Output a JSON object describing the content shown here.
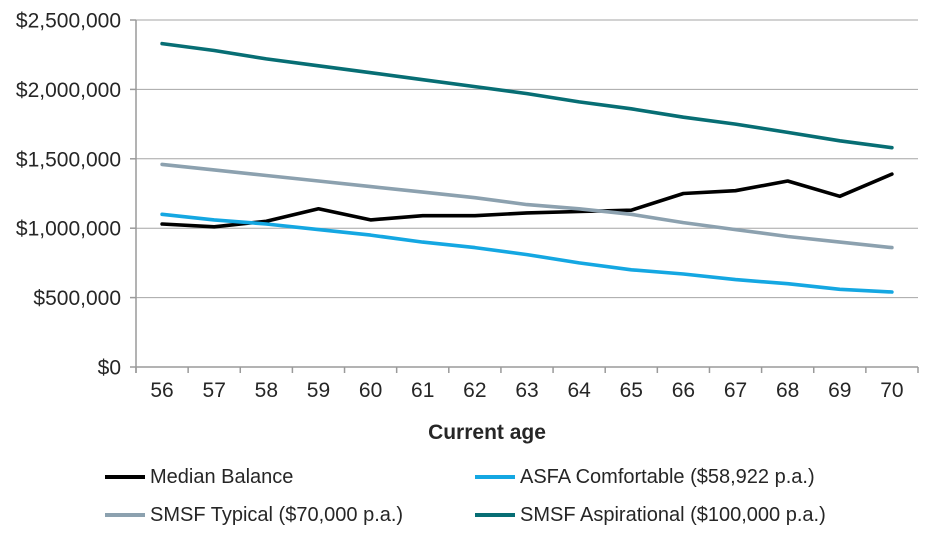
{
  "chart_data": {
    "type": "line",
    "title": "",
    "xlabel": "Current age",
    "ylabel": "",
    "categories": [
      "56",
      "57",
      "58",
      "59",
      "60",
      "61",
      "62",
      "63",
      "64",
      "65",
      "66",
      "67",
      "68",
      "69",
      "70"
    ],
    "y_axis": {
      "min": 0,
      "max": 2500000,
      "ticks": [
        {
          "value": 0,
          "label": "$0"
        },
        {
          "value": 500000,
          "label": "$500,000"
        },
        {
          "value": 1000000,
          "label": "$1,000,000"
        },
        {
          "value": 1500000,
          "label": "$1,500,000"
        },
        {
          "value": 2000000,
          "label": "$2,000,000"
        },
        {
          "value": 2500000,
          "label": "$2,500,000"
        }
      ]
    },
    "grid": true,
    "legend_position": "bottom",
    "series": [
      {
        "name": "Median Balance",
        "color": "#000000",
        "values": [
          1030000,
          1010000,
          1050000,
          1140000,
          1060000,
          1090000,
          1090000,
          1110000,
          1120000,
          1130000,
          1250000,
          1270000,
          1340000,
          1230000,
          1390000
        ]
      },
      {
        "name": "ASFA Comfortable ($58,922 p.a.)",
        "color": "#14A7E2",
        "values": [
          1100000,
          1060000,
          1030000,
          990000,
          950000,
          900000,
          860000,
          810000,
          750000,
          700000,
          670000,
          630000,
          600000,
          560000,
          540000
        ]
      },
      {
        "name": "SMSF Typical ($70,000 p.a.)",
        "color": "#8CA1AF",
        "values": [
          1460000,
          1420000,
          1380000,
          1340000,
          1300000,
          1260000,
          1220000,
          1170000,
          1140000,
          1100000,
          1040000,
          990000,
          940000,
          900000,
          860000
        ]
      },
      {
        "name": "SMSF Aspirational ($100,000 p.a.)",
        "color": "#076E74",
        "values": [
          2330000,
          2280000,
          2220000,
          2170000,
          2120000,
          2070000,
          2020000,
          1970000,
          1910000,
          1860000,
          1800000,
          1750000,
          1690000,
          1630000,
          1580000
        ]
      }
    ]
  },
  "colors": {
    "gridline": "#A6A6A6",
    "axis": "#9A9A9A",
    "text": "#262626",
    "background": "#FFFFFF"
  }
}
